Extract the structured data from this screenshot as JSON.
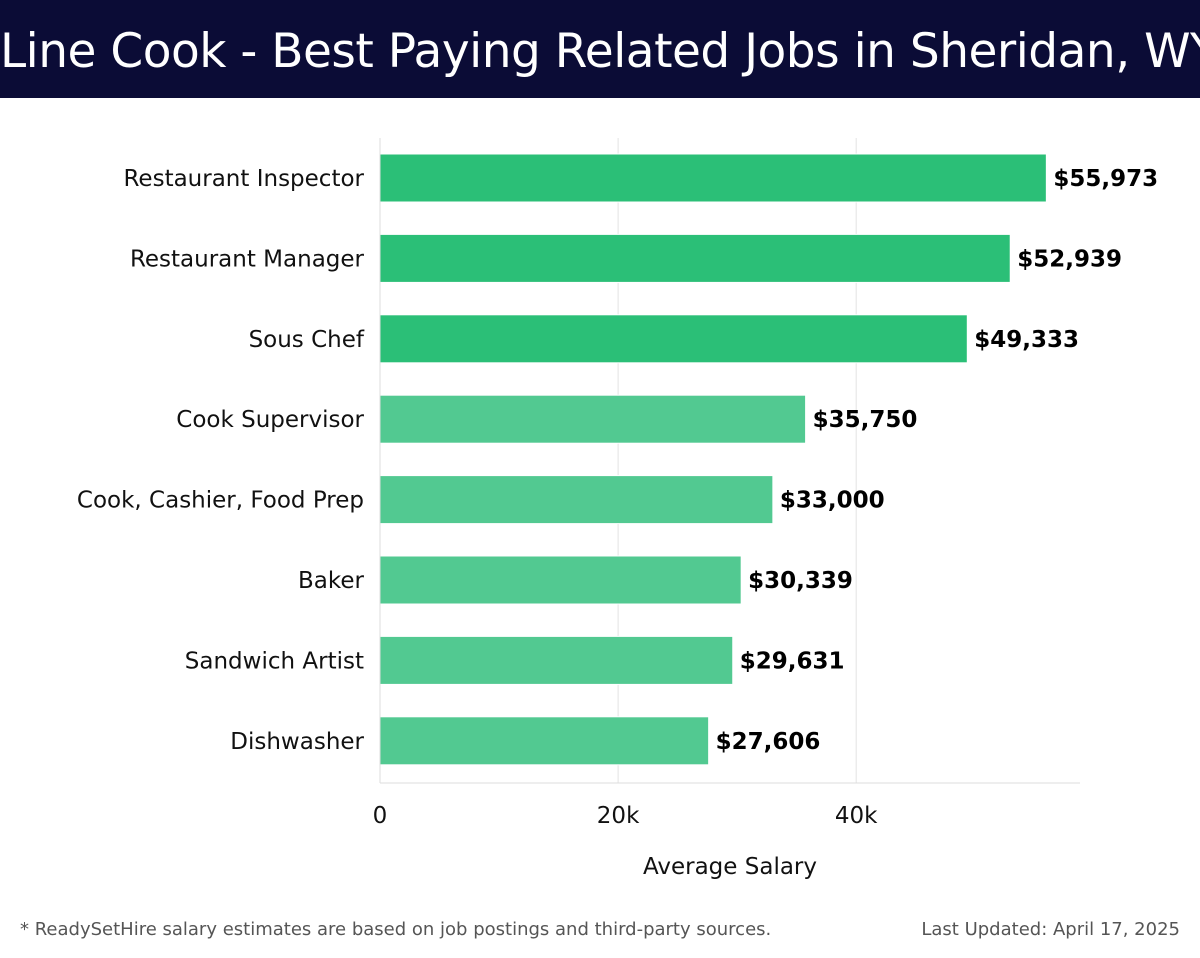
{
  "header": {
    "title": "Line Cook - Best Paying Related Jobs in Sheridan, WY"
  },
  "chart_data": {
    "type": "bar",
    "orientation": "horizontal",
    "title": "Line Cook - Best Paying Related Jobs in Sheridan, WY",
    "xlabel": "Average Salary",
    "ylabel": "",
    "categories": [
      "Restaurant Inspector",
      "Restaurant Manager",
      "Sous Chef",
      "Cook Supervisor",
      "Cook, Cashier, Food Prep",
      "Baker",
      "Sandwich Artist",
      "Dishwasher"
    ],
    "values": [
      55973,
      52939,
      49333,
      35750,
      33000,
      30339,
      29631,
      27606
    ],
    "value_labels": [
      "$55,973",
      "$52,939",
      "$49,333",
      "$35,750",
      "$33,000",
      "$30,339",
      "$29,631",
      "$27,606"
    ],
    "xlim": [
      0,
      58800
    ],
    "xticks": [
      0,
      20000,
      40000
    ],
    "xtick_labels": [
      "0",
      "20k",
      "40k"
    ],
    "grid": true,
    "legend": "none",
    "colors": {
      "top_bars": "#2bbf77",
      "other_bars": "#52c991"
    }
  },
  "footer": {
    "note": "* ReadySetHire salary estimates are based on job postings and third-party sources.",
    "updated": "Last Updated: April 17, 2025"
  }
}
